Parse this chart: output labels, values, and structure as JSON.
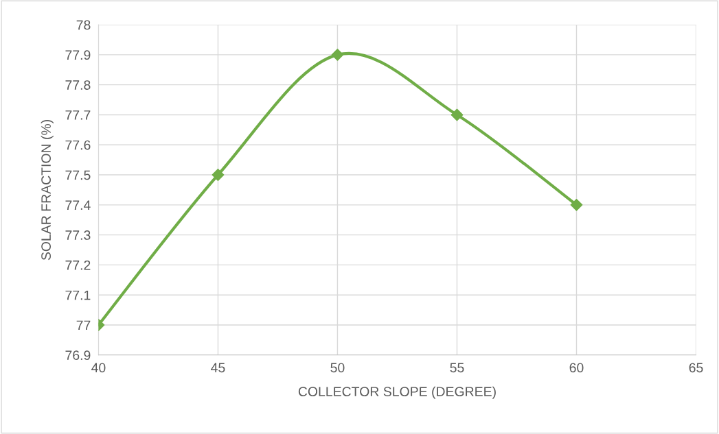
{
  "chart_data": {
    "type": "line",
    "xlabel": "COLLECTOR SLOPE (DEGREE)",
    "ylabel": "SOLAR FRACTION (%)",
    "x": [
      40,
      45,
      50,
      55,
      60
    ],
    "series": [
      {
        "color": "#70ad47",
        "values": [
          77,
          77.5,
          77.9,
          77.7,
          77.4
        ]
      }
    ],
    "xlim": [
      40,
      65
    ],
    "xticks": [
      40,
      45,
      50,
      55,
      60,
      65
    ],
    "ylim": [
      76.9,
      78
    ],
    "yticks": [
      76.9,
      77,
      77.1,
      77.2,
      77.3,
      77.4,
      77.5,
      77.6,
      77.7,
      77.8,
      77.9,
      78
    ],
    "grid": true,
    "marker": "diamond",
    "line_style": "solid",
    "legend": false
  }
}
